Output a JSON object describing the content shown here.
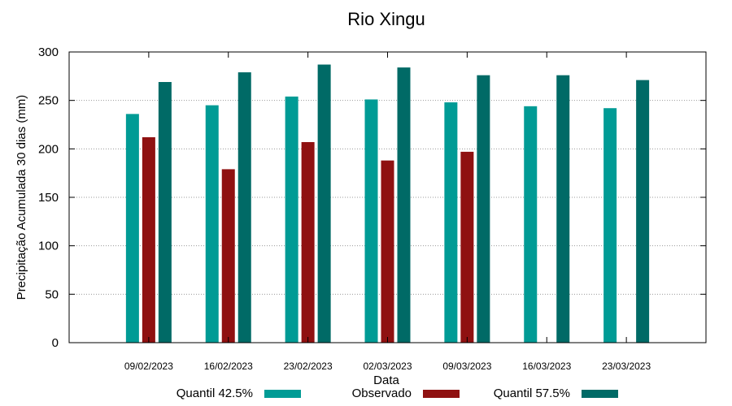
{
  "chart_data": {
    "type": "bar",
    "title": "Rio Xingu",
    "xlabel": "Data",
    "ylabel": "Precipitação Acumulada 30 dias (mm)",
    "ylim": [
      0,
      300
    ],
    "yticks": [
      0,
      50,
      100,
      150,
      200,
      250,
      300
    ],
    "grid": true,
    "legend_position": "bottom",
    "categories": [
      "09/02/2023",
      "16/02/2023",
      "23/02/2023",
      "02/03/2023",
      "09/03/2023",
      "16/03/2023",
      "23/03/2023"
    ],
    "series": [
      {
        "name": "Quantil 42.5%",
        "color": "#009b95",
        "values": [
          236,
          245,
          254,
          251,
          248,
          244,
          242
        ]
      },
      {
        "name": "Observado",
        "color": "#8f1111",
        "values": [
          212,
          179,
          207,
          188,
          197,
          null,
          null
        ]
      },
      {
        "name": "Quantil 57.5%",
        "color": "#006a66",
        "values": [
          269,
          279,
          287,
          284,
          276,
          276,
          271
        ]
      }
    ]
  }
}
